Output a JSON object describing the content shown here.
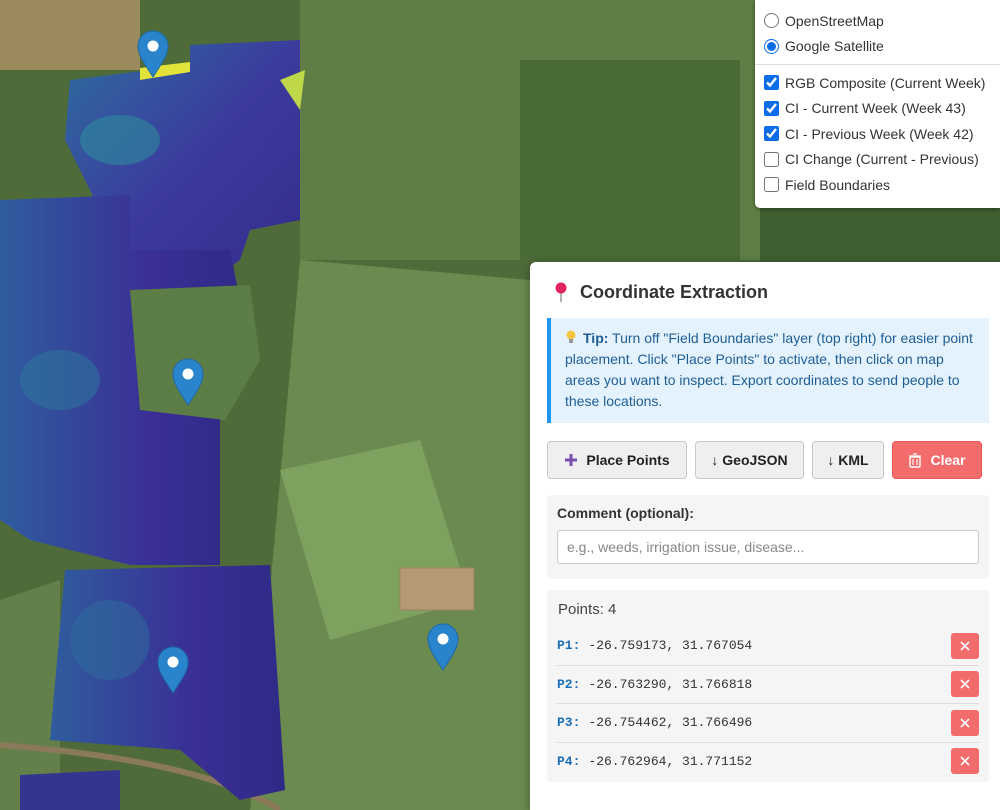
{
  "layers": {
    "base": [
      {
        "label": "OpenStreetMap",
        "checked": false
      },
      {
        "label": "Google Satellite",
        "checked": true
      }
    ],
    "overlays": [
      {
        "label": "RGB Composite (Current Week)",
        "checked": true
      },
      {
        "label": "CI - Current Week (Week 43)",
        "checked": true
      },
      {
        "label": "CI - Previous Week (Week 42)",
        "checked": true
      },
      {
        "label": "CI Change (Current - Previous)",
        "checked": false
      },
      {
        "label": "Field Boundaries",
        "checked": false
      }
    ]
  },
  "panel": {
    "title": "Coordinate Extraction",
    "tip_label": "Tip:",
    "tip_text": "Turn off \"Field Boundaries\" layer (top right) for easier point placement. Click \"Place Points\" to activate, then click on map areas you want to inspect. Export coordinates to send people to these locations.",
    "buttons": [
      "Place Points",
      "↓ GeoJSON",
      "↓ KML",
      "Clear"
    ],
    "comment_label": "Comment (optional):",
    "comment_placeholder": "e.g., weeds, irrigation issue, disease...",
    "points_label": "Points:",
    "points_count": 4,
    "points": [
      {
        "label": "P1:",
        "coords": "-26.759173, 31.767054"
      },
      {
        "label": "P2:",
        "coords": "-26.763290, 31.766818"
      },
      {
        "label": "P3:",
        "coords": "-26.754462, 31.766496"
      },
      {
        "label": "P4:",
        "coords": "-26.762964, 31.771152"
      }
    ]
  }
}
